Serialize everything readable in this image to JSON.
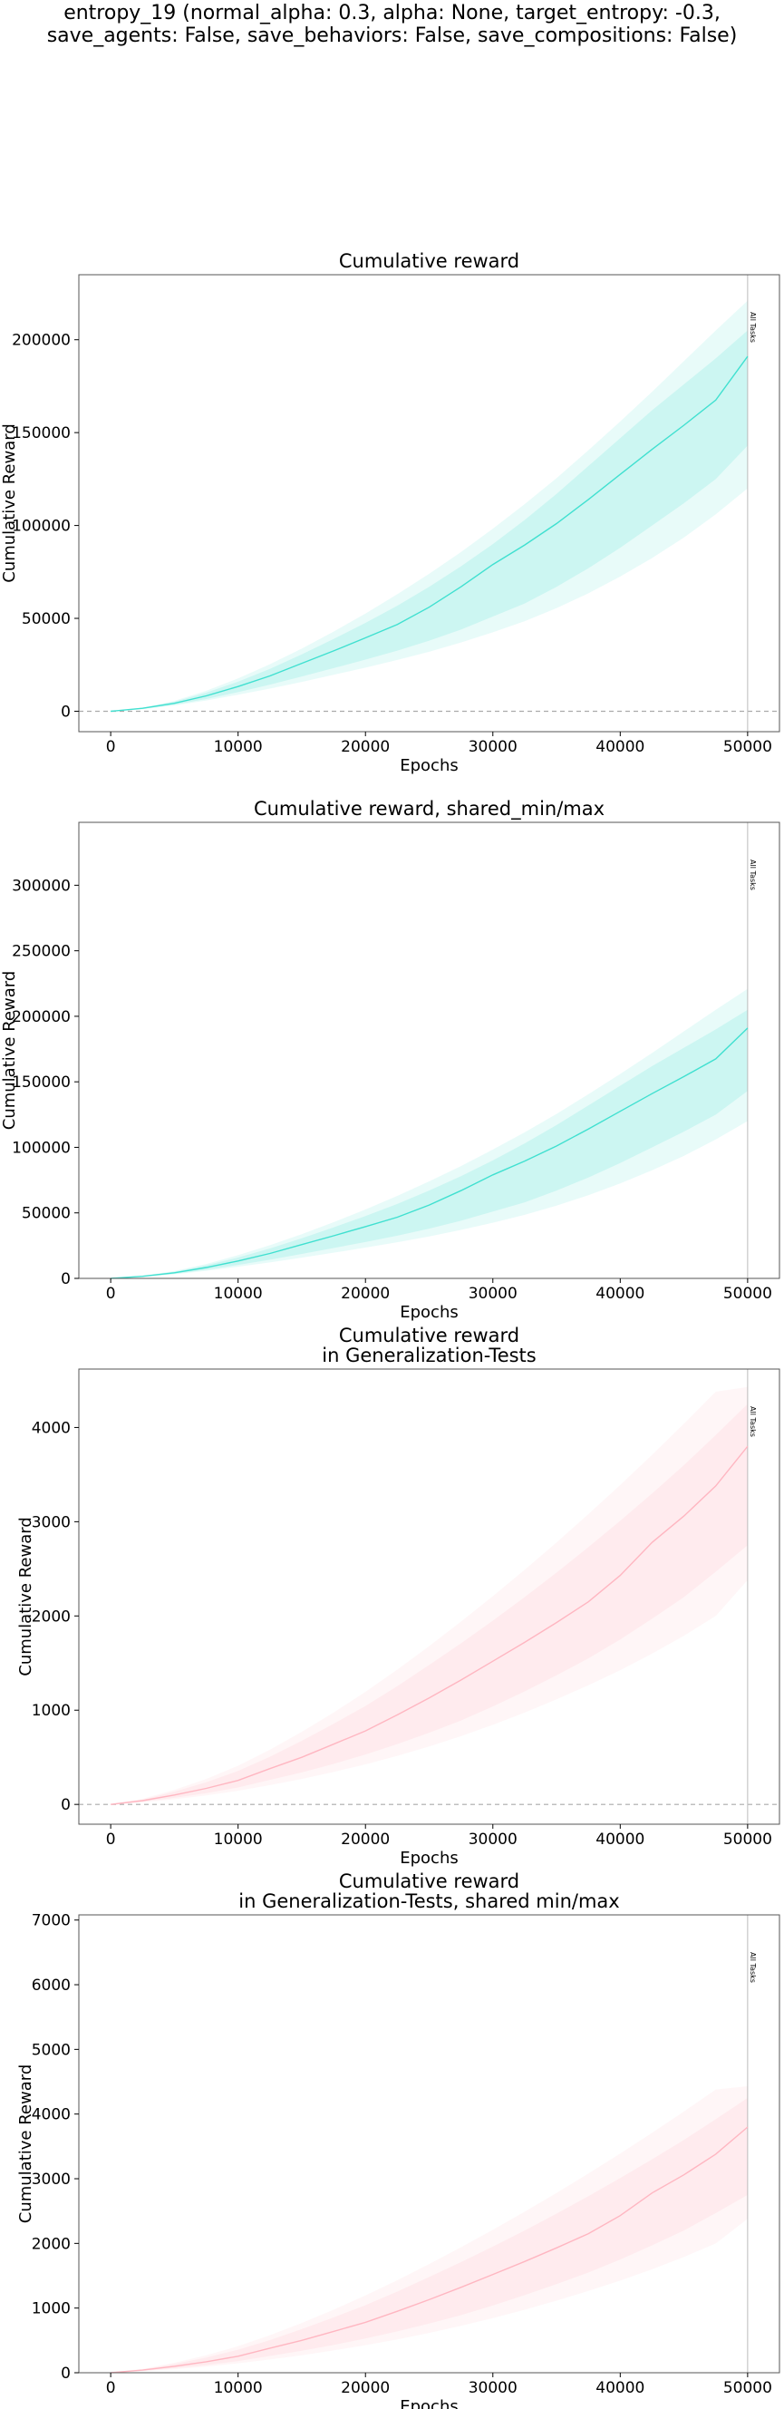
{
  "figure": {
    "suptitle_lines": [
      "entropy_19 (normal_alpha: 0.3, alpha: None, target_entropy: -0.3,",
      "save_agents: False, save_behaviors: False, save_compositions: False)"
    ]
  },
  "colors": {
    "train": "#40e0d0",
    "generalization": "#ffb6c1",
    "axis": "#555555",
    "vline": "#bbbbbb",
    "zero_line": "#aaaaaa"
  },
  "chart_data": [
    {
      "type": "line",
      "title_lines": [
        "Cumulative reward"
      ],
      "xlabel": "Epochs",
      "ylabel": "Cumulative Reward",
      "xlim": [
        -2500,
        52500
      ],
      "ylim": [
        -11000,
        235000
      ],
      "xticks": [
        0,
        10000,
        20000,
        30000,
        40000,
        50000
      ],
      "yticks": [
        0,
        50000,
        100000,
        150000,
        200000
      ],
      "zero_line": true,
      "vline": {
        "x": 50000,
        "label": "All Tasks"
      },
      "color_key": "train",
      "series": [
        {
          "x": [
            0,
            2500,
            5000,
            7500,
            10000,
            12500,
            15000,
            17500,
            20000,
            22500,
            25000,
            27500,
            30000,
            32500,
            35000,
            37500,
            40000,
            42500,
            45000,
            47500,
            50000
          ],
          "mean": [
            0,
            1600,
            4300,
            8300,
            13300,
            19000,
            25800,
            32500,
            39500,
            46700,
            56000,
            67000,
            79000,
            89500,
            101000,
            114000,
            127500,
            141000,
            154000,
            167500,
            191000
          ],
          "inner_low": [
            0,
            1300,
            3500,
            6600,
            10300,
            14300,
            18700,
            23200,
            27800,
            32600,
            38000,
            44000,
            51000,
            58000,
            67000,
            77000,
            88000,
            100000,
            112000,
            125000,
            143000
          ],
          "inner_high": [
            0,
            1800,
            5100,
            10000,
            15900,
            22800,
            30600,
            38900,
            47600,
            56800,
            67000,
            78000,
            90000,
            103000,
            117000,
            132000,
            147000,
            162000,
            176000,
            190000,
            205000
          ],
          "outer_low": [
            0,
            1100,
            3100,
            5800,
            8900,
            12200,
            15800,
            19600,
            23500,
            27600,
            32000,
            37000,
            42500,
            48500,
            55500,
            63500,
            72500,
            82500,
            93500,
            106000,
            120000
          ],
          "outer_high": [
            0,
            2000,
            5600,
            11000,
            17700,
            25300,
            33700,
            42900,
            52600,
            63000,
            74000,
            85700,
            98300,
            111500,
            125500,
            140500,
            156000,
            172000,
            188500,
            205000,
            221000
          ]
        }
      ]
    },
    {
      "type": "line",
      "title_lines": [
        "Cumulative reward, shared_min/max"
      ],
      "xlabel": "Epochs",
      "ylabel": "Cumulative Reward",
      "xlim": [
        -2500,
        52500
      ],
      "ylim": [
        0,
        348000
      ],
      "xticks": [
        0,
        10000,
        20000,
        30000,
        40000,
        50000
      ],
      "yticks": [
        0,
        50000,
        100000,
        150000,
        200000,
        250000,
        300000
      ],
      "zero_line": false,
      "vline": {
        "x": 50000,
        "label": "All Tasks"
      },
      "color_key": "train",
      "series": [
        {
          "x": [
            0,
            2500,
            5000,
            7500,
            10000,
            12500,
            15000,
            17500,
            20000,
            22500,
            25000,
            27500,
            30000,
            32500,
            35000,
            37500,
            40000,
            42500,
            45000,
            47500,
            50000
          ],
          "mean": [
            0,
            1600,
            4300,
            8300,
            13300,
            19000,
            25800,
            32500,
            39500,
            46700,
            56000,
            67000,
            79000,
            89500,
            101000,
            114000,
            127500,
            141000,
            154000,
            167500,
            191000
          ],
          "inner_low": [
            0,
            1300,
            3500,
            6600,
            10300,
            14300,
            18700,
            23200,
            27800,
            32600,
            38000,
            44000,
            51000,
            58000,
            67000,
            77000,
            88000,
            100000,
            112000,
            125000,
            143000
          ],
          "inner_high": [
            0,
            1800,
            5100,
            10000,
            15900,
            22800,
            30600,
            38900,
            47600,
            56800,
            67000,
            78000,
            90000,
            103000,
            117000,
            132000,
            147000,
            162000,
            176000,
            190000,
            205000
          ],
          "outer_low": [
            0,
            1100,
            3100,
            5800,
            8900,
            12200,
            15800,
            19600,
            23500,
            27600,
            32000,
            37000,
            42500,
            48500,
            55500,
            63500,
            72500,
            82500,
            93500,
            106000,
            120000
          ],
          "outer_high": [
            0,
            2000,
            5600,
            11000,
            17700,
            25300,
            33700,
            42900,
            52600,
            63000,
            74000,
            85700,
            98300,
            111500,
            125500,
            140500,
            156000,
            172000,
            188500,
            205000,
            221000
          ]
        }
      ]
    },
    {
      "type": "line",
      "title_lines": [
        "Cumulative reward",
        "in Generalization-Tests"
      ],
      "xlabel": "Epochs",
      "ylabel": "Cumulative Reward",
      "xlim": [
        -2500,
        52500
      ],
      "ylim": [
        -210,
        4620
      ],
      "xticks": [
        0,
        10000,
        20000,
        30000,
        40000,
        50000
      ],
      "yticks": [
        0,
        1000,
        2000,
        3000,
        4000
      ],
      "zero_line": true,
      "vline": {
        "x": 50000,
        "label": "All Tasks"
      },
      "color_key": "generalization",
      "series": [
        {
          "x": [
            0,
            2500,
            5000,
            7500,
            10000,
            12500,
            15000,
            17500,
            20000,
            22500,
            25000,
            27500,
            30000,
            32500,
            35000,
            37500,
            40000,
            42500,
            45000,
            47500,
            50000
          ],
          "mean": [
            0,
            40,
            100,
            170,
            255,
            380,
            500,
            640,
            780,
            950,
            1130,
            1320,
            1520,
            1720,
            1930,
            2150,
            2430,
            2780,
            3060,
            3380,
            3800
          ],
          "inner_low": [
            0,
            28,
            70,
            120,
            180,
            260,
            340,
            430,
            530,
            640,
            760,
            890,
            1040,
            1200,
            1370,
            1550,
            1750,
            1970,
            2200,
            2470,
            2750
          ],
          "inner_high": [
            0,
            50,
            135,
            235,
            355,
            505,
            675,
            855,
            1045,
            1255,
            1480,
            1710,
            1950,
            2200,
            2460,
            2730,
            3010,
            3300,
            3600,
            3920,
            4250
          ],
          "outer_low": [
            0,
            22,
            55,
            95,
            145,
            205,
            270,
            345,
            425,
            515,
            615,
            725,
            845,
            975,
            1115,
            1265,
            1425,
            1600,
            1790,
            2000,
            2380
          ],
          "outer_high": [
            0,
            60,
            155,
            270,
            410,
            580,
            770,
            975,
            1195,
            1430,
            1680,
            1940,
            2210,
            2490,
            2780,
            3080,
            3390,
            3710,
            4040,
            4380,
            4430
          ]
        }
      ]
    },
    {
      "type": "line",
      "title_lines": [
        "Cumulative reward",
        "in Generalization-Tests, shared min/max"
      ],
      "xlabel": "Epochs",
      "ylabel": "Cumulative Reward",
      "xlim": [
        -2500,
        52500
      ],
      "ylim": [
        0,
        7080
      ],
      "xticks": [
        0,
        10000,
        20000,
        30000,
        40000,
        50000
      ],
      "yticks": [
        0,
        1000,
        2000,
        3000,
        4000,
        5000,
        6000,
        7000
      ],
      "zero_line": false,
      "vline": {
        "x": 50000,
        "label": "All Tasks"
      },
      "color_key": "generalization",
      "series": [
        {
          "x": [
            0,
            2500,
            5000,
            7500,
            10000,
            12500,
            15000,
            17500,
            20000,
            22500,
            25000,
            27500,
            30000,
            32500,
            35000,
            37500,
            40000,
            42500,
            45000,
            47500,
            50000
          ],
          "mean": [
            0,
            40,
            100,
            170,
            255,
            380,
            500,
            640,
            780,
            950,
            1130,
            1320,
            1520,
            1720,
            1930,
            2150,
            2430,
            2780,
            3060,
            3380,
            3800
          ],
          "inner_low": [
            0,
            28,
            70,
            120,
            180,
            260,
            340,
            430,
            530,
            640,
            760,
            890,
            1040,
            1200,
            1370,
            1550,
            1750,
            1970,
            2200,
            2470,
            2750
          ],
          "inner_high": [
            0,
            50,
            135,
            235,
            355,
            505,
            675,
            855,
            1045,
            1255,
            1480,
            1710,
            1950,
            2200,
            2460,
            2730,
            3010,
            3300,
            3600,
            3920,
            4250
          ],
          "outer_low": [
            0,
            22,
            55,
            95,
            145,
            205,
            270,
            345,
            425,
            515,
            615,
            725,
            845,
            975,
            1115,
            1265,
            1425,
            1600,
            1790,
            2000,
            2380
          ],
          "outer_high": [
            0,
            60,
            155,
            270,
            410,
            580,
            770,
            975,
            1195,
            1430,
            1680,
            1940,
            2210,
            2490,
            2780,
            3080,
            3390,
            3710,
            4040,
            4380,
            4430
          ]
        }
      ]
    }
  ]
}
